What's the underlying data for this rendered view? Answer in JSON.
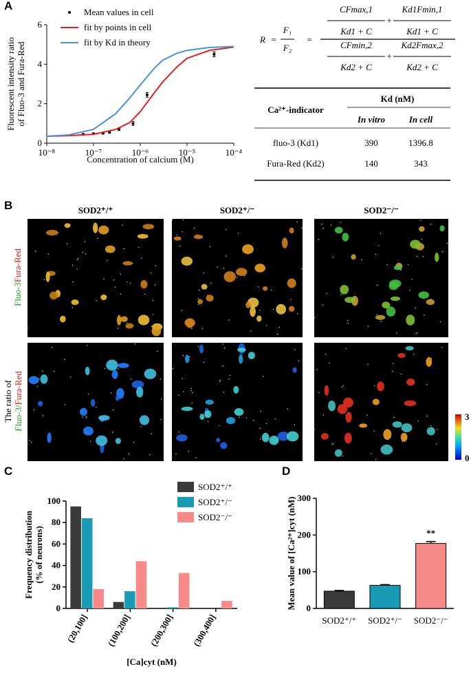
{
  "panel_labels": [
    "A",
    "B",
    "C",
    "D"
  ],
  "chart_data": [
    {
      "type": "line",
      "xscale": "log",
      "xlabel": "Concentration of calcium (M)",
      "ylabel": [
        "Fluorescent intensity ratio",
        "of Fluo-3 and Fura-Red"
      ],
      "xlim": [
        1e-08,
        0.0001
      ],
      "xticks": [
        {
          "value": 1e-08,
          "label": "10⁻⁸"
        },
        {
          "value": 1e-07,
          "label": "10⁻⁷"
        },
        {
          "value": 1e-06,
          "label": "10⁻⁶"
        },
        {
          "value": 1e-05,
          "label": "10⁻⁵"
        },
        {
          "value": 0.0001,
          "label": "10⁻⁴"
        }
      ],
      "ylim": [
        0,
        6
      ],
      "yticks": [
        0,
        2,
        4,
        6
      ],
      "series": [
        {
          "name": "Mean values in cell",
          "color": "#000000",
          "mode": "markers",
          "x": [
            6e-08,
            1e-07,
            1.6e-07,
            2.2e-07,
            3.5e-07,
            7e-07,
            1.4e-06,
            3.8e-05
          ],
          "values": [
            0.45,
            0.48,
            0.5,
            0.55,
            0.7,
            1.0,
            2.45,
            4.5
          ],
          "yerr": [
            0.04,
            0.04,
            0.04,
            0.05,
            0.06,
            0.1,
            0.12,
            0.12
          ]
        },
        {
          "name": "fit by points in cell",
          "color": "#e32020",
          "mode": "line",
          "x": [
            1e-08,
            3e-08,
            1e-07,
            3e-07,
            6e-07,
            1e-06,
            2e-06,
            3e-06,
            6e-06,
            1e-05,
            3e-05,
            0.0001
          ],
          "values": [
            0.35,
            0.38,
            0.45,
            0.7,
            1.05,
            1.6,
            2.55,
            3.1,
            3.85,
            4.3,
            4.7,
            4.87
          ]
        },
        {
          "name": "fit by Kd in theory",
          "color": "#4a90e2",
          "mode": "line",
          "x": [
            1e-08,
            3e-08,
            1e-07,
            3e-07,
            6e-07,
            1e-06,
            2e-06,
            3e-06,
            6e-06,
            1e-05,
            3e-05,
            0.0001
          ],
          "values": [
            0.35,
            0.42,
            0.7,
            1.5,
            2.3,
            2.95,
            3.8,
            4.2,
            4.55,
            4.7,
            4.85,
            4.9
          ]
        }
      ]
    },
    {
      "type": "bar",
      "xlabel": "[Ca]cyt (nM)",
      "ylabel": [
        "Frequency distribution",
        "(% of neurons)"
      ],
      "categories": [
        "(20,100]",
        "(100,200]",
        "(200,300]",
        "(300,400]"
      ],
      "ylim": [
        0,
        100
      ],
      "yticks": [
        0,
        20,
        40,
        60,
        80,
        100
      ],
      "series": [
        {
          "name": "SOD2⁺/⁺",
          "color": "#3a3a3a",
          "values": [
            95,
            6,
            0,
            0
          ]
        },
        {
          "name": "SOD2⁺/⁻",
          "color": "#1a9bb5",
          "values": [
            84,
            16,
            1,
            0
          ]
        },
        {
          "name": "SOD2⁻/⁻",
          "color": "#f98a8a",
          "values": [
            18,
            44,
            33,
            7
          ]
        }
      ]
    },
    {
      "type": "errorbar",
      "ylabel": "Mean value of [Ca²⁺]cyt (nM)",
      "categories": [
        "SOD2⁺/⁺",
        "SOD2⁺/⁻",
        "SOD2⁻/⁻"
      ],
      "colors": [
        "#3a3a3a",
        "#1a9bb5",
        "#f98a8a"
      ],
      "values": [
        47,
        63,
        177
      ],
      "yerr": [
        2,
        2,
        5
      ],
      "annotation": "**",
      "ylim": [
        0,
        300
      ],
      "yticks": [
        0,
        100,
        200,
        300
      ]
    }
  ],
  "equation": {
    "lhs": "R",
    "eq": "=",
    "f_num": "F₁",
    "f_den": "F₂",
    "eq2": "=",
    "num": [
      [
        "CFmax,1",
        "Kd1 + C"
      ],
      [
        "Kd1Fmin,1",
        "Kd1 + C"
      ]
    ],
    "num_op": "+",
    "den": [
      [
        "CFmin,2",
        "Kd2 + C"
      ],
      [
        "Kd2Fmax,2",
        "Kd2 + C"
      ]
    ],
    "den_op": "+"
  },
  "table": {
    "header": [
      "Ca²⁺-indicator",
      "Kd (nM)"
    ],
    "subheader": [
      "In vitro",
      "In cell"
    ],
    "rows": [
      [
        "fluo-3 (Kd1)",
        "390",
        "1396.8"
      ],
      [
        "Fura-Red (Kd2)",
        "140",
        "343"
      ]
    ]
  },
  "images": {
    "column_titles": [
      "SOD2⁺/⁺",
      "SOD2⁺/⁻",
      "SOD2⁻/⁻"
    ],
    "row1_label": [
      "Fluo-3",
      "Fura-Red"
    ],
    "row2_label": [
      "The ratio of",
      "Fluo-3/",
      "Fura-Red"
    ],
    "colorbar": [
      "3",
      "0"
    ]
  }
}
